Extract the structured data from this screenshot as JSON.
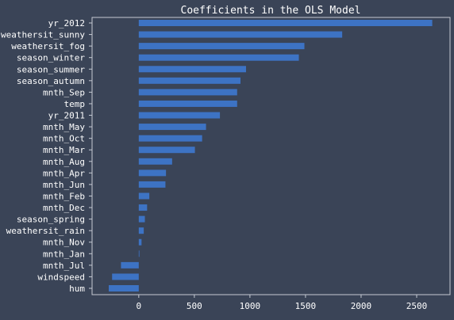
{
  "chart_data": {
    "type": "bar",
    "orientation": "horizontal",
    "title": "Coefficients in the OLS Model",
    "xlabel": "",
    "ylabel": "",
    "xlim": [
      -420,
      2800
    ],
    "xticks": [
      0,
      500,
      1000,
      1500,
      2000,
      2500
    ],
    "grid": false,
    "legend": "none",
    "categories": [
      "yr_2012",
      "weathersit_sunny",
      "weathersit_fog",
      "season_winter",
      "season_summer",
      "season_autumn",
      "mnth_Sep",
      "temp",
      "yr_2011",
      "mnth_May",
      "mnth_Oct",
      "mnth_Mar",
      "mnth_Aug",
      "mnth_Apr",
      "mnth_Jun",
      "mnth_Feb",
      "mnth_Dec",
      "season_spring",
      "weathersit_rain",
      "mnth_Nov",
      "mnth_Jan",
      "mnth_Jul",
      "windspeed",
      "hum"
    ],
    "values": [
      2640,
      1830,
      1490,
      1440,
      965,
      915,
      885,
      885,
      730,
      605,
      570,
      505,
      300,
      245,
      240,
      95,
      75,
      55,
      45,
      25,
      5,
      -160,
      -240,
      -270
    ],
    "colors": {
      "background": "#3a4457",
      "bar": "#3d73c4",
      "text": "#ffffff",
      "axis": "#c5cad3"
    }
  }
}
